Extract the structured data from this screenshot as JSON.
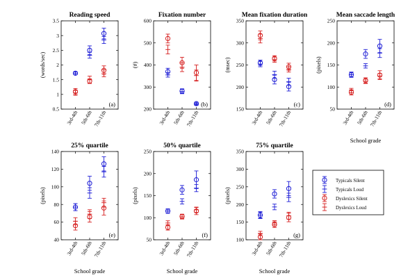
{
  "figure": {
    "legend": {
      "entries": [
        {
          "name": "Typicals Silent",
          "color": "#1f1fd6",
          "marker": "circle"
        },
        {
          "name": "Typicals Loud",
          "color": "#1f1fd6",
          "marker": "plus"
        },
        {
          "name": "Dyslexics Silent",
          "color": "#d62020",
          "marker": "circle"
        },
        {
          "name": "Dyslexics Loud",
          "color": "#d62020",
          "marker": "plus"
        }
      ]
    }
  },
  "chart_data": [
    {
      "type": "scatter",
      "panel": "(a)",
      "title": "Reading speed",
      "ylabel": "(words/sec)",
      "xlabel": "",
      "categories": [
        "3rd-4th",
        "5th-6th",
        "7th-11th"
      ],
      "ylim": [
        0.5,
        3.5
      ],
      "yticks": [
        "0.5",
        "1",
        "1.5",
        "2",
        "2.5",
        "3",
        "3.5"
      ],
      "series": [
        {
          "name": "Typicals Silent",
          "values": [
            1.72,
            2.5,
            3.07
          ],
          "err": [
            0.05,
            0.15,
            0.18
          ]
        },
        {
          "name": "Typicals Loud",
          "values": [
            1.72,
            2.33,
            2.85
          ],
          "err": [
            0.05,
            0.1,
            0.12
          ]
        },
        {
          "name": "Dyslexics Silent",
          "values": [
            1.1,
            1.45,
            1.82
          ],
          "err": [
            0.1,
            0.08,
            0.15
          ]
        },
        {
          "name": "Dyslexics Loud",
          "values": [
            1.05,
            1.5,
            1.72
          ],
          "err": [
            0.08,
            0.12,
            0.12
          ]
        }
      ]
    },
    {
      "type": "scatter",
      "panel": "(b)",
      "title": "Fixation number",
      "ylabel": "(#)",
      "xlabel": "",
      "categories": [
        "3rd-4th",
        "5th-6th",
        "7th-11th"
      ],
      "ylim": [
        200,
        600
      ],
      "yticks": [
        "200",
        "300",
        "400",
        "500",
        "600"
      ],
      "series": [
        {
          "name": "Typicals Silent",
          "values": [
            370,
            282,
            225
          ],
          "err": [
            15,
            10,
            6
          ]
        },
        {
          "name": "Typicals Loud",
          "values": [
            355,
            280,
            222
          ],
          "err": [
            10,
            10,
            5
          ]
        },
        {
          "name": "Dyslexics Silent",
          "values": [
            520,
            410,
            365
          ],
          "err": [
            20,
            25,
            35
          ]
        },
        {
          "name": "Dyslexics Loud",
          "values": [
            470,
            390,
            352
          ],
          "err": [
            20,
            20,
            25
          ]
        }
      ]
    },
    {
      "type": "scatter",
      "panel": "(c)",
      "title": "Mean fixation duration",
      "ylabel": "(msec)",
      "xlabel": "",
      "categories": [
        "3rd-4th",
        "5th-6th",
        "7th-11th"
      ],
      "ylim": [
        150,
        350
      ],
      "yticks": [
        "150",
        "200",
        "250",
        "300",
        "350"
      ],
      "series": [
        {
          "name": "Typicals Silent",
          "values": [
            255,
            217,
            201
          ],
          "err": [
            6,
            10,
            10
          ]
        },
        {
          "name": "Typicals Loud",
          "values": [
            252,
            228,
            212
          ],
          "err": [
            6,
            8,
            8
          ]
        },
        {
          "name": "Dyslexics Silent",
          "values": [
            317,
            265,
            246
          ],
          "err": [
            10,
            6,
            8
          ]
        },
        {
          "name": "Dyslexics Loud",
          "values": [
            310,
            262,
            240
          ],
          "err": [
            10,
            6,
            6
          ]
        }
      ]
    },
    {
      "type": "scatter",
      "panel": "(d)",
      "title": "Mean saccade length",
      "ylabel": "(pixels)",
      "xlabel": "School grade",
      "categories": [
        "3rd-4th",
        "5th-6th",
        "7th-11th"
      ],
      "ylim": [
        50,
        250
      ],
      "yticks": [
        "50",
        "100",
        "150",
        "200",
        "250"
      ],
      "series": [
        {
          "name": "Typicals Silent",
          "values": [
            128,
            175,
            193
          ],
          "err": [
            6,
            10,
            15
          ]
        },
        {
          "name": "Typicals Loud",
          "values": [
            128,
            148,
            177
          ],
          "err": [
            5,
            5,
            10
          ]
        },
        {
          "name": "Dyslexics Silent",
          "values": [
            88,
            115,
            127
          ],
          "err": [
            6,
            6,
            10
          ]
        },
        {
          "name": "Dyslexics Loud",
          "values": [
            92,
            113,
            125
          ],
          "err": [
            5,
            5,
            6
          ]
        }
      ]
    },
    {
      "type": "scatter",
      "panel": "(e)",
      "title": "25% quartile",
      "ylabel": "(pixels)",
      "xlabel": "School grade",
      "categories": [
        "3rd-4th",
        "5th-6th",
        "7th-11th"
      ],
      "ylim": [
        40,
        140
      ],
      "yticks": [
        "40",
        "60",
        "80",
        "100",
        "120",
        "140"
      ],
      "series": [
        {
          "name": "Typicals Silent",
          "values": [
            77,
            104,
            126
          ],
          "err": [
            4,
            8,
            8
          ]
        },
        {
          "name": "Typicals Loud",
          "values": [
            77,
            93,
            117
          ],
          "err": [
            4,
            6,
            6
          ]
        },
        {
          "name": "Dyslexics Silent",
          "values": [
            56,
            66,
            76
          ],
          "err": [
            5,
            6,
            8
          ]
        },
        {
          "name": "Dyslexics Loud",
          "values": [
            61,
            69,
            82
          ],
          "err": [
            4,
            5,
            5
          ]
        }
      ]
    },
    {
      "type": "scatter",
      "panel": "(f)",
      "title": "50% quartile",
      "ylabel": "(pixels)",
      "xlabel": "School grade",
      "categories": [
        "3rd-4th",
        "5th-6th",
        "7th-11th"
      ],
      "ylim": [
        50,
        250
      ],
      "yticks": [
        "50",
        "100",
        "150",
        "200",
        "250"
      ],
      "series": [
        {
          "name": "Typicals Silent",
          "values": [
            115,
            163,
            186
          ],
          "err": [
            5,
            10,
            20
          ]
        },
        {
          "name": "Typicals Loud",
          "values": [
            115,
            137,
            167
          ],
          "err": [
            5,
            6,
            8
          ]
        },
        {
          "name": "Dyslexics Silent",
          "values": [
            78,
            103,
            115
          ],
          "err": [
            6,
            5,
            8
          ]
        },
        {
          "name": "Dyslexics Loud",
          "values": [
            88,
            102,
            118
          ],
          "err": [
            5,
            5,
            6
          ]
        }
      ]
    },
    {
      "type": "scatter",
      "panel": "(g)",
      "title": "75% quartile",
      "ylabel": "(pixels)",
      "xlabel": "School grade",
      "categories": [
        "3rd-4th",
        "5th-6th",
        "7th-11th"
      ],
      "ylim": [
        100,
        350
      ],
      "yticks": [
        "100",
        "150",
        "200",
        "250",
        "300",
        "350"
      ],
      "series": [
        {
          "name": "Typicals Silent",
          "values": [
            170,
            230,
            245
          ],
          "err": [
            10,
            12,
            20
          ]
        },
        {
          "name": "Typicals Loud",
          "values": [
            170,
            193,
            220
          ],
          "err": [
            8,
            8,
            12
          ]
        },
        {
          "name": "Dyslexics Silent",
          "values": [
            108,
            143,
            163
          ],
          "err": [
            8,
            8,
            12
          ]
        },
        {
          "name": "Dyslexics Loud",
          "values": [
            118,
            148,
            168
          ],
          "err": [
            6,
            6,
            10
          ]
        }
      ]
    }
  ]
}
